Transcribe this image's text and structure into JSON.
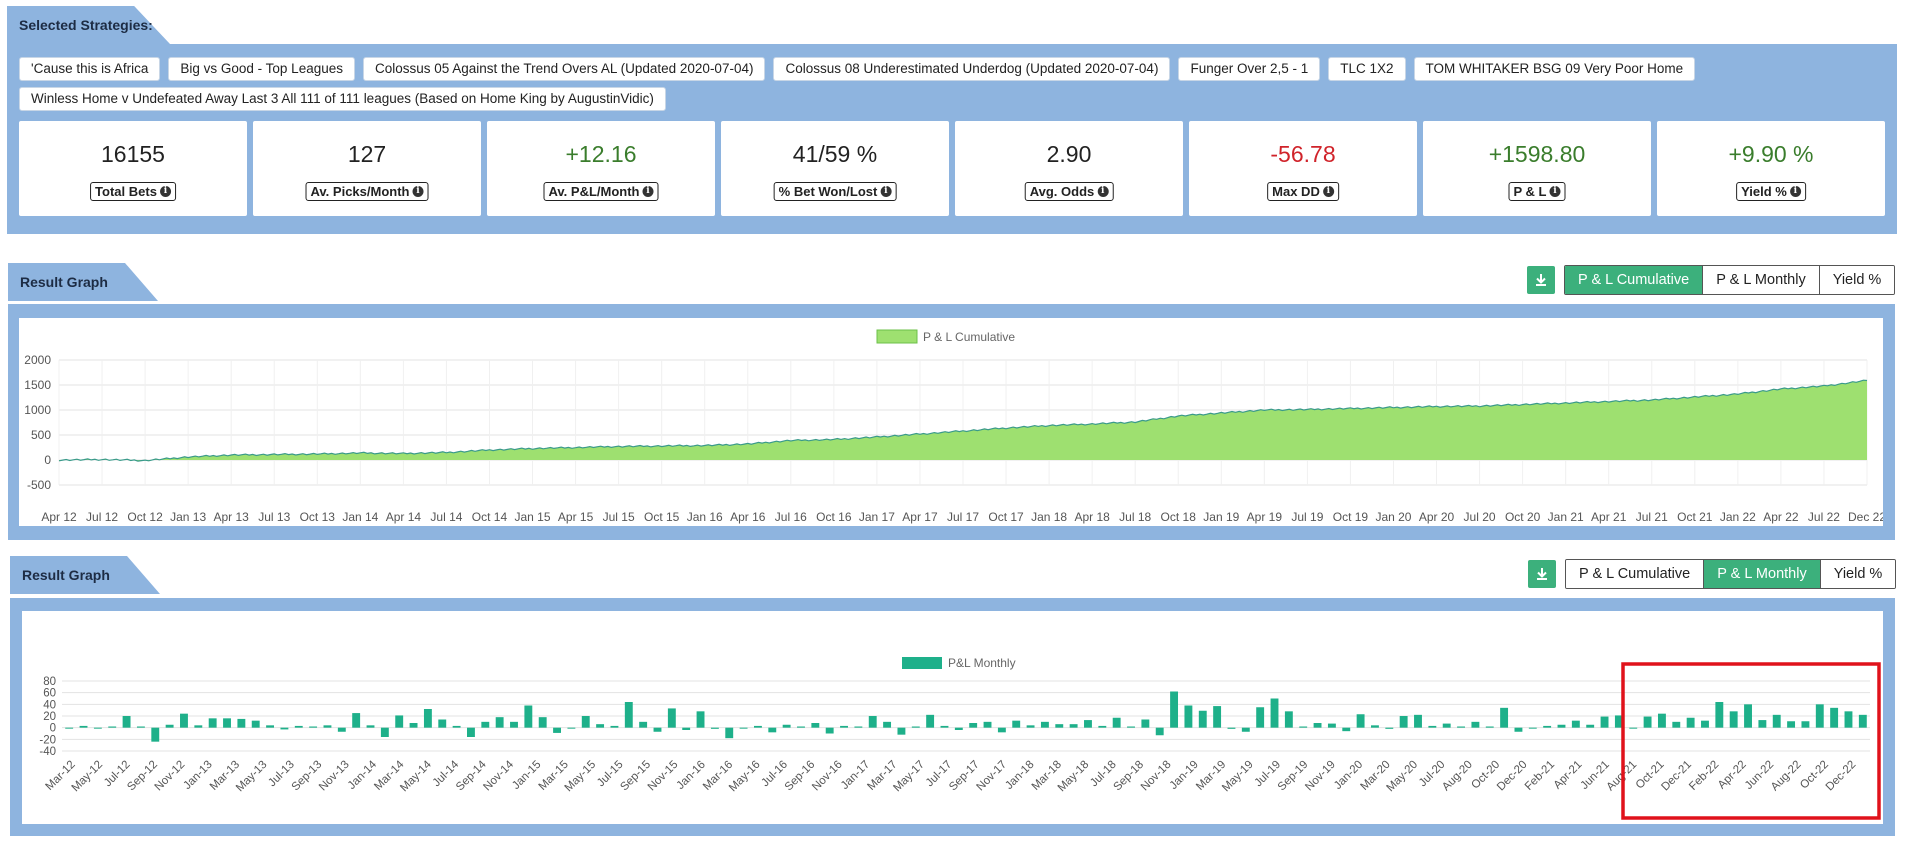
{
  "strategies": {
    "title": "Selected Strategies:",
    "chips": [
      "'Cause this is Africa",
      "Big vs Good - Top Leagues",
      "Colossus 05 Against the Trend Overs AL (Updated 2020-07-04)",
      "Colossus 08 Underestimated Underdog (Updated 2020-07-04)",
      "Funger Over 2,5 - 1",
      "TLC 1X2",
      "TOM WHITAKER BSG 09 Very Poor Home",
      "Winless Home v Undefeated Away Last 3 All 111 of 111 leagues (Based on Home King by AugustinVidic)"
    ],
    "stats": [
      {
        "value": "16155",
        "label": "Total Bets",
        "tone": "neutral"
      },
      {
        "value": "127",
        "label": "Av. Picks/Month",
        "tone": "neutral"
      },
      {
        "value": "+12.16",
        "label": "Av. P&L/Month",
        "tone": "pos"
      },
      {
        "value": "41/59 %",
        "label": "% Bet Won/Lost",
        "tone": "neutral"
      },
      {
        "value": "2.90",
        "label": "Avg. Odds",
        "tone": "neutral"
      },
      {
        "value": "-56.78",
        "label": "Max DD",
        "tone": "neg"
      },
      {
        "value": "+1598.80",
        "label": "P & L",
        "tone": "pos"
      },
      {
        "value": "+9.90 %",
        "label": "Yield %",
        "tone": "pos"
      }
    ],
    "info_glyph": "i"
  },
  "graph1": {
    "title": "Result Graph",
    "buttons": [
      "P & L Cumulative",
      "P & L Monthly",
      "Yield %"
    ],
    "active_index": 0,
    "download_icon": "download-icon"
  },
  "graph2": {
    "title": "Result Graph",
    "buttons": [
      "P & L Cumulative",
      "P & L Monthly",
      "Yield %"
    ],
    "active_index": 1,
    "download_icon": "download-icon"
  },
  "colors": {
    "panel": "#8eb4df",
    "accent": "#3cb07c",
    "cum_fill": "#9ee070",
    "cum_line": "#3a9a8a",
    "bar": "#1eb08a",
    "highlight": "#e0121b"
  },
  "chart_data": [
    {
      "type": "area",
      "legend": "P & L Cumulative",
      "x_ticks": [
        "Apr 12",
        "Jul 12",
        "Oct 12",
        "Jan 13",
        "Apr 13",
        "Jul 13",
        "Oct 13",
        "Jan 14",
        "Apr 14",
        "Jul 14",
        "Oct 14",
        "Jan 15",
        "Apr 15",
        "Jul 15",
        "Oct 15",
        "Jan 16",
        "Apr 16",
        "Jul 16",
        "Oct 16",
        "Jan 17",
        "Apr 17",
        "Jul 17",
        "Oct 17",
        "Jan 18",
        "Apr 18",
        "Jul 18",
        "Oct 18",
        "Jan 19",
        "Apr 19",
        "Jul 19",
        "Oct 19",
        "Jan 20",
        "Apr 20",
        "Jul 20",
        "Oct 20",
        "Jan 21",
        "Apr 21",
        "Jul 21",
        "Oct 21",
        "Jan 22",
        "Apr 22",
        "Jul 22",
        "Dec 22"
      ],
      "y_ticks": [
        2000,
        1500,
        1000,
        500,
        0,
        -500
      ],
      "ylim": [
        -500,
        2000
      ],
      "x": [
        "Apr 12",
        "Jul 12",
        "Oct 12",
        "Jan 13",
        "Apr 13",
        "Jul 13",
        "Oct 13",
        "Jan 14",
        "Apr 14",
        "Jul 14",
        "Oct 14",
        "Jan 15",
        "Apr 15",
        "Jul 15",
        "Oct 15",
        "Jan 16",
        "Apr 16",
        "Jul 16",
        "Oct 16",
        "Jan 17",
        "Apr 17",
        "Jul 17",
        "Oct 17",
        "Jan 18",
        "Apr 18",
        "Jul 18",
        "Oct 18",
        "Jan 19",
        "Apr 19",
        "Jul 19",
        "Oct 19",
        "Jan 20",
        "Apr 20",
        "Jul 20",
        "Oct 20",
        "Jan 21",
        "Apr 21",
        "Jul 21",
        "Oct 21",
        "Jan 22",
        "Apr 22",
        "Jul 22",
        "Dec 22"
      ],
      "values": [
        0,
        10,
        -10,
        60,
        100,
        110,
        120,
        140,
        130,
        150,
        200,
        230,
        250,
        270,
        280,
        290,
        320,
        390,
        410,
        460,
        520,
        580,
        640,
        690,
        720,
        760,
        880,
        940,
        1000,
        1010,
        1030,
        1050,
        1070,
        1080,
        1110,
        1140,
        1170,
        1200,
        1260,
        1320,
        1420,
        1480,
        1590
      ],
      "grid": true
    },
    {
      "type": "bar",
      "legend": "P&L Monthly",
      "y_ticks": [
        80,
        60,
        40,
        20,
        0,
        -20,
        -40
      ],
      "ylim": [
        -40,
        80
      ],
      "x_tick_labels": [
        "Mar-12",
        "May-12",
        "Jul-12",
        "Sep-12",
        "Nov-12",
        "Jan-13",
        "Mar-13",
        "May-13",
        "Jul-13",
        "Sep-13",
        "Nov-13",
        "Jan-14",
        "Mar-14",
        "May-14",
        "Jul-14",
        "Sep-14",
        "Nov-14",
        "Jan-15",
        "Mar-15",
        "May-15",
        "Jul-15",
        "Sep-15",
        "Nov-15",
        "Jan-16",
        "Mar-16",
        "May-16",
        "Jul-16",
        "Sep-16",
        "Nov-16",
        "Jan-17",
        "Mar-17",
        "May-17",
        "Jul-17",
        "Sep-17",
        "Nov-17",
        "Jan-18",
        "Mar-18",
        "May-18",
        "Jul-18",
        "Sep-18",
        "Nov-18",
        "Jan-19",
        "Mar-19",
        "May-19",
        "Jul-19",
        "Sep-19",
        "Nov-19",
        "Jan-20",
        "Mar-20",
        "May-20",
        "Jul-20",
        "Aug-20",
        "Oct-20",
        "Dec-20",
        "Feb-21",
        "Apr-21",
        "Jun-21",
        "Aug-21",
        "Oct-21",
        "Dec-21",
        "Feb-22",
        "Apr-22",
        "Jun-22",
        "Aug-22",
        "Oct-22",
        "Dec-22"
      ],
      "values": [
        0,
        3,
        0,
        2,
        20,
        2,
        -24,
        5,
        24,
        4,
        16,
        16,
        15,
        12,
        4,
        -3,
        3,
        2,
        4,
        -7,
        25,
        4,
        -16,
        21,
        8,
        32,
        14,
        3,
        -16,
        10,
        18,
        10,
        38,
        18,
        -9,
        0,
        20,
        6,
        3,
        44,
        10,
        -7,
        33,
        -4,
        28,
        -2,
        -18,
        0,
        3,
        -8,
        5,
        2,
        8,
        -10,
        3,
        2,
        20,
        10,
        -12,
        2,
        22,
        3,
        -4,
        8,
        10,
        -8,
        12,
        4,
        10,
        6,
        6,
        13,
        3,
        17,
        2,
        14,
        -13,
        62,
        38,
        29,
        37,
        -2,
        -7,
        35,
        50,
        28,
        2,
        8,
        7,
        -6,
        23,
        4,
        -2,
        20,
        22,
        3,
        7,
        2,
        10,
        2,
        34,
        -7,
        0,
        3,
        5,
        12,
        5,
        19,
        21,
        0,
        19,
        24,
        10,
        17,
        12,
        44,
        28,
        40,
        13,
        22,
        11,
        11,
        40,
        34,
        28,
        22
      ],
      "highlight_region": {
        "from": "Aug-21",
        "to": "Dec-22"
      },
      "grid": true
    }
  ]
}
